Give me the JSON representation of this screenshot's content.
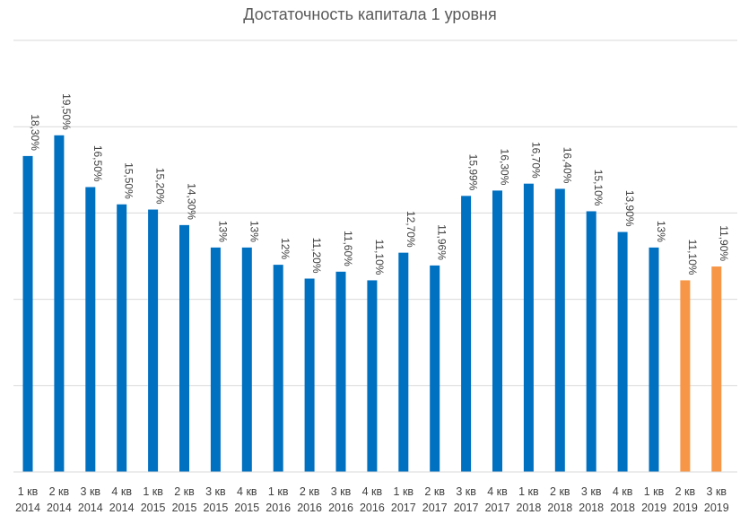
{
  "chart_data": {
    "type": "bar",
    "title": "Достаточность капитала 1 уровня",
    "xlabel": "",
    "ylabel": "",
    "ylim": [
      0,
      25
    ],
    "grid": true,
    "legend": "none",
    "categories": [
      [
        "1 кв",
        "2014"
      ],
      [
        "2 кв",
        "2014"
      ],
      [
        "3 кв",
        "2014"
      ],
      [
        "4 кв",
        "2014"
      ],
      [
        "1 кв",
        "2015"
      ],
      [
        "2 кв",
        "2015"
      ],
      [
        "3 кв",
        "2015"
      ],
      [
        "4 кв",
        "2015"
      ],
      [
        "1 кв",
        "2016"
      ],
      [
        "2 кв",
        "2016"
      ],
      [
        "3 кв",
        "2016"
      ],
      [
        "4 кв",
        "2016"
      ],
      [
        "1 кв",
        "2017"
      ],
      [
        "2 кв",
        "2017"
      ],
      [
        "3 кв",
        "2017"
      ],
      [
        "4 кв",
        "2017"
      ],
      [
        "1 кв",
        "2018"
      ],
      [
        "2 кв",
        "2018"
      ],
      [
        "3 кв",
        "2018"
      ],
      [
        "4 кв",
        "2018"
      ],
      [
        "1 кв",
        "2019"
      ],
      [
        "2 кв",
        "2019"
      ],
      [
        "3 кв",
        "2019"
      ]
    ],
    "values": [
      18.3,
      19.5,
      16.5,
      15.5,
      15.2,
      14.3,
      13,
      13,
      12,
      11.2,
      11.6,
      11.1,
      12.7,
      11.96,
      15.99,
      16.3,
      16.7,
      16.4,
      15.1,
      13.9,
      13,
      11.1,
      11.9
    ],
    "labels": [
      "18,30%",
      "19,50%",
      "16,50%",
      "15,50%",
      "15,20%",
      "14,30%",
      "13%",
      "13%",
      "12%",
      "11,20%",
      "11,60%",
      "11,10%",
      "12,70%",
      "11,96%",
      "15,99%",
      "16,30%",
      "16,70%",
      "16,40%",
      "15,10%",
      "13,90%",
      "13%",
      "11,10%",
      "11,90%"
    ],
    "colors": [
      "#0070c0",
      "#0070c0",
      "#0070c0",
      "#0070c0",
      "#0070c0",
      "#0070c0",
      "#0070c0",
      "#0070c0",
      "#0070c0",
      "#0070c0",
      "#0070c0",
      "#0070c0",
      "#0070c0",
      "#0070c0",
      "#0070c0",
      "#0070c0",
      "#0070c0",
      "#0070c0",
      "#0070c0",
      "#0070c0",
      "#0070c0",
      "#f79646",
      "#f79646"
    ],
    "gridline_color": "#d9d9d9"
  }
}
